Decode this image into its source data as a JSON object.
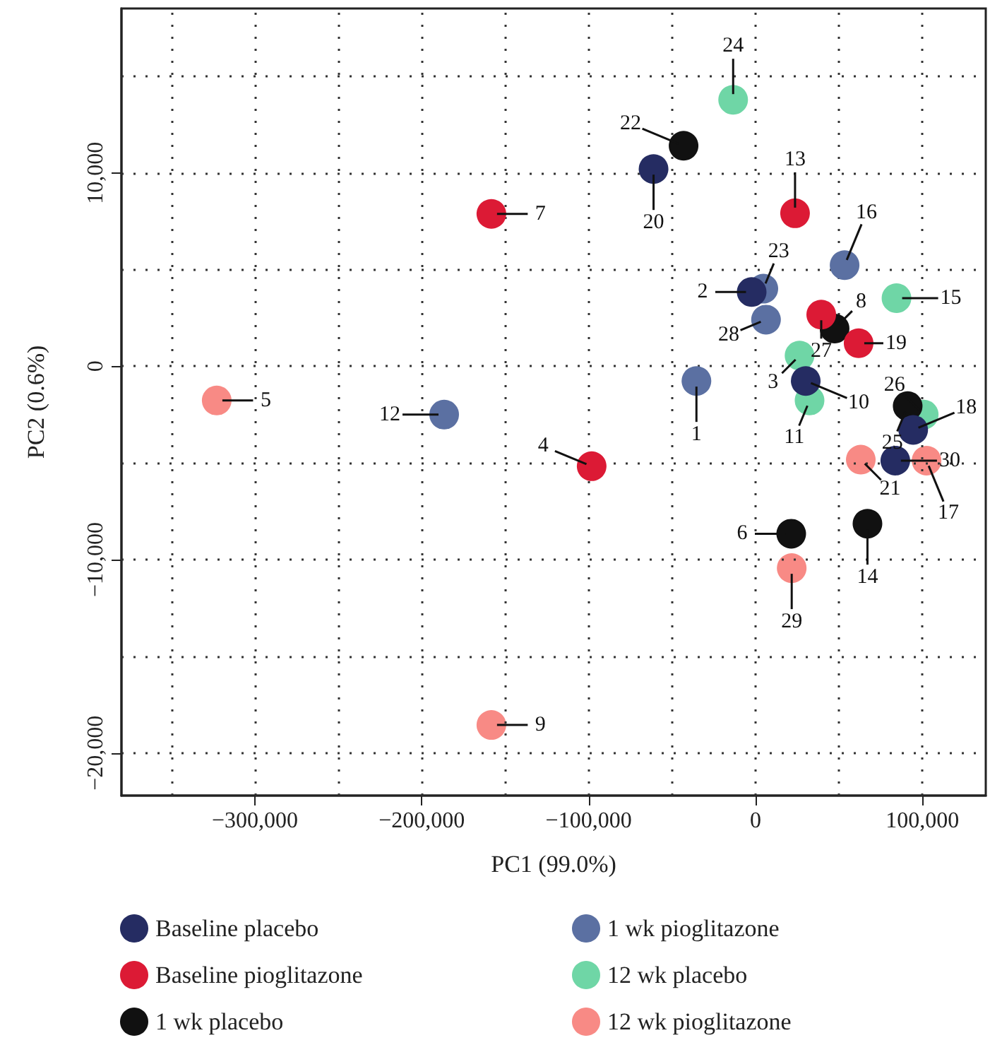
{
  "chart_data": {
    "type": "scatter",
    "xlabel": "PC1 (99.0%)",
    "ylabel": "PC2 (0.6%)",
    "xlim": [
      -380000,
      138000
    ],
    "ylim": [
      -22200,
      18500
    ],
    "xticks": [
      {
        "value": -350000,
        "label": null
      },
      {
        "value": -300000,
        "label": "−300,000"
      },
      {
        "value": -250000,
        "label": null
      },
      {
        "value": -200000,
        "label": "−200,000"
      },
      {
        "value": -150000,
        "label": null
      },
      {
        "value": -100000,
        "label": "−100,000"
      },
      {
        "value": -50000,
        "label": null
      },
      {
        "value": 0,
        "label": "0"
      },
      {
        "value": 50000,
        "label": null
      },
      {
        "value": 100000,
        "label": "100,000"
      }
    ],
    "yticks": [
      {
        "value": -20000,
        "label": "−20,000"
      },
      {
        "value": -15000,
        "label": null
      },
      {
        "value": -10000,
        "label": "−10,000"
      },
      {
        "value": -5000,
        "label": null
      },
      {
        "value": 0,
        "label": "0"
      },
      {
        "value": 5000,
        "label": null
      },
      {
        "value": 10000,
        "label": "10,000"
      },
      {
        "value": 15000,
        "label": null
      }
    ],
    "grid": true,
    "legend": "bottom",
    "marker": "circle",
    "series": [
      {
        "name": "Baseline placebo",
        "color": "#252c62",
        "x": [
          -2300,
          30100,
          94500,
          -61100,
          83800
        ],
        "values": [
          3840,
          -760,
          -3290,
          10200,
          -4880
        ]
      },
      {
        "name": "Baseline pioglitazone",
        "color": "#dc1a35",
        "x": [
          -98200,
          -158300,
          23700,
          61800,
          39400
        ],
        "values": [
          -5170,
          7880,
          7910,
          1190,
          2670
        ]
      },
      {
        "name": "1 wk placebo",
        "color": "#111111",
        "x": [
          21400,
          47400,
          67100,
          -43100,
          91200
        ],
        "values": [
          -8660,
          1950,
          -8140,
          11400,
          -2060
        ]
      },
      {
        "name": "1 wk pioglitazone",
        "color": "#5b70a2",
        "x": [
          -35400,
          -186600,
          53400,
          4700,
          6300
        ],
        "values": [
          -760,
          -2500,
          5230,
          4010,
          2410
        ]
      },
      {
        "name": "12 wk placebo",
        "color": "#6fd6a6",
        "x": [
          26400,
          32400,
          84500,
          -13400,
          100800
        ],
        "values": [
          550,
          -1770,
          3520,
          13780,
          -2500
        ]
      },
      {
        "name": "12 wk pioglitazone",
        "color": "#f88a85",
        "x": [
          -322900,
          -158300,
          102500,
          63100,
          21700
        ],
        "values": [
          -1770,
          -18550,
          -4880,
          -4830,
          -10440
        ]
      }
    ],
    "annotations": [
      {
        "text": "1",
        "x": -35400,
        "y": -760
      },
      {
        "text": "2",
        "x": -2300,
        "y": 3840
      },
      {
        "text": "3",
        "x": 26400,
        "y": 550
      },
      {
        "text": "4",
        "x": -98200,
        "y": -5170
      },
      {
        "text": "5",
        "x": -322900,
        "y": -1770
      },
      {
        "text": "6",
        "x": 21400,
        "y": -8660
      },
      {
        "text": "7",
        "x": -158300,
        "y": 7880
      },
      {
        "text": "8",
        "x": 47400,
        "y": 1950
      },
      {
        "text": "9",
        "x": -158300,
        "y": -18550
      },
      {
        "text": "10",
        "x": 30100,
        "y": -760
      },
      {
        "text": "11",
        "x": 32400,
        "y": -1770
      },
      {
        "text": "12",
        "x": -186600,
        "y": -2500
      },
      {
        "text": "13",
        "x": 23700,
        "y": 7910
      },
      {
        "text": "14",
        "x": 67100,
        "y": -8140
      },
      {
        "text": "15",
        "x": 84500,
        "y": 3520
      },
      {
        "text": "16",
        "x": 53400,
        "y": 5230
      },
      {
        "text": "17",
        "x": 102500,
        "y": -4880
      },
      {
        "text": "18",
        "x": 94500,
        "y": -3290
      },
      {
        "text": "19",
        "x": 61800,
        "y": 1190
      },
      {
        "text": "20",
        "x": -61100,
        "y": 10200
      },
      {
        "text": "21",
        "x": 63100,
        "y": -4830
      },
      {
        "text": "22",
        "x": -43100,
        "y": 11400
      },
      {
        "text": "23",
        "x": 4700,
        "y": 4010
      },
      {
        "text": "24",
        "x": -13400,
        "y": 13780
      },
      {
        "text": "25",
        "x": 91200,
        "y": -2060
      },
      {
        "text": "26",
        "x": 100800,
        "y": -2500
      },
      {
        "text": "27",
        "x": 39400,
        "y": 2670
      },
      {
        "text": "28",
        "x": 6300,
        "y": 2410
      },
      {
        "text": "29",
        "x": 21700,
        "y": -10440
      },
      {
        "text": "30",
        "x": 83800,
        "y": -4880
      }
    ]
  }
}
